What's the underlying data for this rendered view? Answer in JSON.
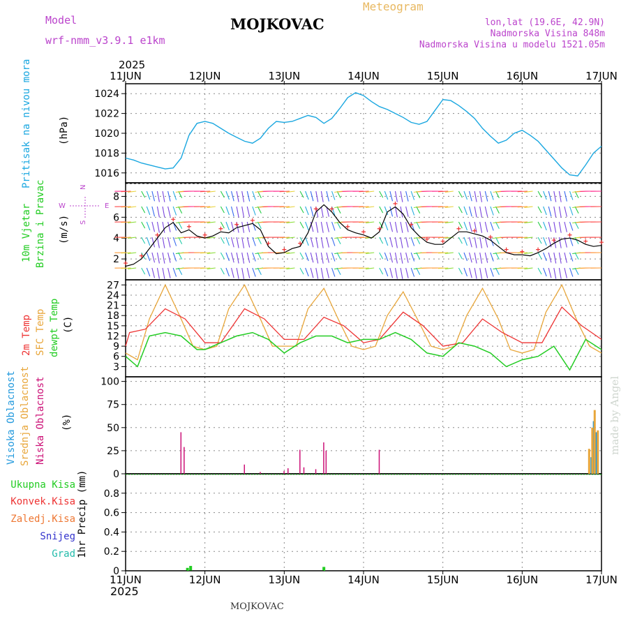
{
  "header": {
    "model_label": "Model",
    "model_name": "wrf-nmm_v3.9.1  e1km",
    "station": "MOJKOVAC",
    "meteogram": "Meteogram",
    "lonlat": "lon,lat (19.6E, 42.9N)",
    "altitude": "Nadmorska Visina 848m",
    "model_altitude": "Nadmorska Visina u modelu 1521.05m",
    "year_top": "2025",
    "year_bottom": "2025",
    "footer_station": "MOJKOVAC",
    "watermark": "made by Angel"
  },
  "colors": {
    "pressure": "#1aa7e0",
    "temp2m": "#ee3333",
    "sfc_temp": "#e8a63a",
    "dewpoint": "#22cc22",
    "high_cloud": "#2299dd",
    "mid_cloud": "#e8a63a",
    "low_cloud": "#cc1177",
    "header_purple": "#bb44cc",
    "meteogram": "#e8b860"
  },
  "x_ticks": [
    "11JUN",
    "12JUN",
    "13JUN",
    "14JUN",
    "15JUN",
    "16JUN",
    "17JUN"
  ],
  "chart_data": [
    {
      "type": "line",
      "panel": "pressure",
      "ylabels": [
        "Pritisak na nivou mora",
        "(hPa)"
      ],
      "ylim": [
        1015,
        1025
      ],
      "yticks": [
        1016,
        1018,
        1020,
        1022,
        1024
      ],
      "series": [
        {
          "name": "Pritisak na nivou mora",
          "x": [
            0,
            0.1,
            0.2,
            0.3,
            0.4,
            0.5,
            0.6,
            0.7,
            0.8,
            0.9,
            1.0,
            1.1,
            1.2,
            1.3,
            1.4,
            1.5,
            1.6,
            1.7,
            1.8,
            1.9,
            2.0,
            2.1,
            2.2,
            2.3,
            2.4,
            2.5,
            2.6,
            2.7,
            2.8,
            2.9,
            3.0,
            3.1,
            3.2,
            3.3,
            3.4,
            3.5,
            3.6,
            3.7,
            3.8,
            3.9,
            4.0,
            4.1,
            4.2,
            4.3,
            4.4,
            4.5,
            4.6,
            4.7,
            4.8,
            4.9,
            5.0,
            5.1,
            5.2,
            5.3,
            5.4,
            5.5,
            5.6,
            5.7,
            5.8,
            5.9,
            6.0
          ],
          "values": [
            1017.5,
            1017.3,
            1017.0,
            1016.8,
            1016.6,
            1016.4,
            1016.5,
            1017.5,
            1019.8,
            1021.0,
            1021.2,
            1021.0,
            1020.5,
            1020.0,
            1019.6,
            1019.2,
            1019.0,
            1019.5,
            1020.5,
            1021.2,
            1021.1,
            1021.2,
            1021.5,
            1021.8,
            1021.6,
            1021.0,
            1021.5,
            1022.5,
            1023.6,
            1024.1,
            1023.8,
            1023.2,
            1022.7,
            1022.4,
            1022.0,
            1021.6,
            1021.1,
            1020.9,
            1021.2,
            1022.3,
            1023.4,
            1023.3,
            1022.8,
            1022.2,
            1021.5,
            1020.5,
            1019.7,
            1019.0,
            1019.3,
            1020.0,
            1020.3,
            1019.8,
            1019.2,
            1018.3,
            1017.4,
            1016.5,
            1015.8,
            1015.7,
            1016.8,
            1018.0,
            1018.7
          ]
        }
      ]
    },
    {
      "type": "line",
      "panel": "wind",
      "ylabels": [
        "10m Vjetar",
        "Brzina i Pravac",
        "(m/s)"
      ],
      "ylim": [
        0,
        9.3
      ],
      "yticks": [
        2,
        4,
        6,
        8
      ],
      "compass": {
        "n": "N",
        "s": "S",
        "e": "E",
        "w": "W"
      },
      "series": [
        {
          "name": "Brzina",
          "x": [
            0,
            0.1,
            0.2,
            0.3,
            0.4,
            0.5,
            0.6,
            0.7,
            0.8,
            0.9,
            1.0,
            1.1,
            1.2,
            1.3,
            1.4,
            1.5,
            1.6,
            1.7,
            1.8,
            1.9,
            2.0,
            2.1,
            2.2,
            2.3,
            2.4,
            2.5,
            2.6,
            2.7,
            2.8,
            2.9,
            3.0,
            3.1,
            3.2,
            3.3,
            3.4,
            3.5,
            3.6,
            3.7,
            3.8,
            3.9,
            4.0,
            4.1,
            4.2,
            4.3,
            4.4,
            4.5,
            4.6,
            4.7,
            4.8,
            4.9,
            5.0,
            5.1,
            5.2,
            5.3,
            5.4,
            5.5,
            5.6,
            5.7,
            5.8,
            5.9,
            6.0
          ],
          "values": [
            1.3,
            1.5,
            2.0,
            3.0,
            4.0,
            5.0,
            5.5,
            4.5,
            4.8,
            4.2,
            4.0,
            4.2,
            4.6,
            4.5,
            5.0,
            5.2,
            5.4,
            4.8,
            3.2,
            2.5,
            2.6,
            3.0,
            3.2,
            4.5,
            6.5,
            7.2,
            6.5,
            5.5,
            4.8,
            4.5,
            4.3,
            4.0,
            4.6,
            6.5,
            7.0,
            6.3,
            5.0,
            4.2,
            3.6,
            3.4,
            3.4,
            4.0,
            4.6,
            4.6,
            4.4,
            4.2,
            3.8,
            3.2,
            2.6,
            2.4,
            2.4,
            2.3,
            2.6,
            3.0,
            3.5,
            3.9,
            4.0,
            3.8,
            3.4,
            3.2,
            3.3
          ]
        }
      ]
    },
    {
      "type": "line",
      "panel": "temperature",
      "ylabels": [
        "2m Temp",
        "SFC Temp",
        "dewpt Temp",
        "(C)"
      ],
      "ylim": [
        0,
        28.5
      ],
      "yticks": [
        3,
        6,
        9,
        12,
        15,
        18,
        21,
        24,
        27
      ],
      "series": [
        {
          "name": "2m Temp",
          "x": [
            0,
            0.05,
            0.25,
            0.5,
            0.75,
            1.0,
            1.2,
            1.5,
            1.75,
            2.0,
            2.25,
            2.5,
            2.75,
            3.0,
            3.2,
            3.5,
            3.75,
            4.0,
            4.25,
            4.5,
            4.75,
            5.0,
            5.25,
            5.5,
            5.75,
            6.0
          ],
          "values": [
            9,
            13,
            14,
            20,
            17,
            10,
            10,
            20,
            17,
            11,
            11,
            17.5,
            15,
            10,
            11,
            19,
            15,
            9,
            10,
            17,
            13,
            10,
            10,
            20.5,
            15,
            11
          ]
        },
        {
          "name": "SFC Temp",
          "x": [
            0,
            0.15,
            0.3,
            0.5,
            0.7,
            0.85,
            1.0,
            1.15,
            1.3,
            1.5,
            1.7,
            1.85,
            2.0,
            2.15,
            2.3,
            2.5,
            2.7,
            2.85,
            3.0,
            3.15,
            3.3,
            3.5,
            3.7,
            3.85,
            4.0,
            4.15,
            4.3,
            4.5,
            4.7,
            4.85,
            5.0,
            5.15,
            5.3,
            5.5,
            5.7,
            5.85,
            6.0
          ],
          "values": [
            7,
            5,
            17,
            27,
            17,
            9,
            8,
            9,
            20,
            27,
            17,
            9,
            9,
            9,
            20,
            26,
            16,
            9,
            8,
            9,
            18,
            25,
            16,
            9,
            8,
            9,
            18,
            26,
            17,
            8,
            7,
            8,
            19,
            27,
            16,
            9,
            7
          ]
        },
        {
          "name": "dewpt Temp",
          "x": [
            0,
            0.15,
            0.3,
            0.5,
            0.7,
            0.9,
            1.0,
            1.2,
            1.4,
            1.6,
            1.8,
            2.0,
            2.2,
            2.4,
            2.6,
            2.8,
            3.0,
            3.2,
            3.4,
            3.6,
            3.8,
            4.0,
            4.2,
            4.4,
            4.6,
            4.8,
            5.0,
            5.2,
            5.4,
            5.6,
            5.8,
            6.0
          ],
          "values": [
            6,
            3,
            12,
            13,
            12,
            8,
            8,
            10,
            12,
            13,
            11,
            7,
            10,
            12,
            12,
            10,
            11,
            11,
            13,
            11,
            7,
            6,
            10,
            9,
            7,
            3,
            5,
            6,
            9,
            2,
            11,
            8
          ]
        }
      ]
    },
    {
      "type": "bar",
      "panel": "cloud",
      "ylabels": [
        "Visoka Oblacnost",
        "Srednja Oblacnost",
        "Niska Oblacnost",
        "(%)"
      ],
      "ylim": [
        0,
        105
      ],
      "yticks": [
        0,
        25,
        50,
        75,
        100
      ],
      "series": [
        {
          "name": "Visoka Oblacnost",
          "x": [
            5.87,
            5.9,
            5.93
          ],
          "values": [
            18,
            57,
            45
          ]
        },
        {
          "name": "Srednja Oblacnost",
          "x": [
            5.84,
            5.88,
            5.91,
            5.95
          ],
          "values": [
            27,
            50,
            69,
            47
          ]
        },
        {
          "name": "Niska Oblacnost",
          "x": [
            0.7,
            0.74,
            1.5,
            1.7,
            2.0,
            2.05,
            2.2,
            2.25,
            2.4,
            2.5,
            2.53,
            3.2
          ],
          "values": [
            45,
            29,
            10,
            2,
            3,
            6,
            26,
            7,
            5,
            34,
            25,
            26
          ]
        }
      ]
    },
    {
      "type": "bar",
      "panel": "precip",
      "ylabels": [
        "1hr Precip (mm)"
      ],
      "legend": [
        "Ukupna Kisa",
        "Konvek.Kisa",
        "Zaledj.Kisa",
        "Snijeg",
        "Grad"
      ],
      "ylim": [
        0,
        1.0
      ],
      "yticks": [
        0,
        0.2,
        0.4,
        0.6,
        0.8
      ],
      "series": [
        {
          "name": "Ukupna Kisa",
          "x": [
            0.78,
            0.82,
            2.5
          ],
          "values": [
            0.03,
            0.05,
            0.04
          ]
        }
      ]
    }
  ]
}
